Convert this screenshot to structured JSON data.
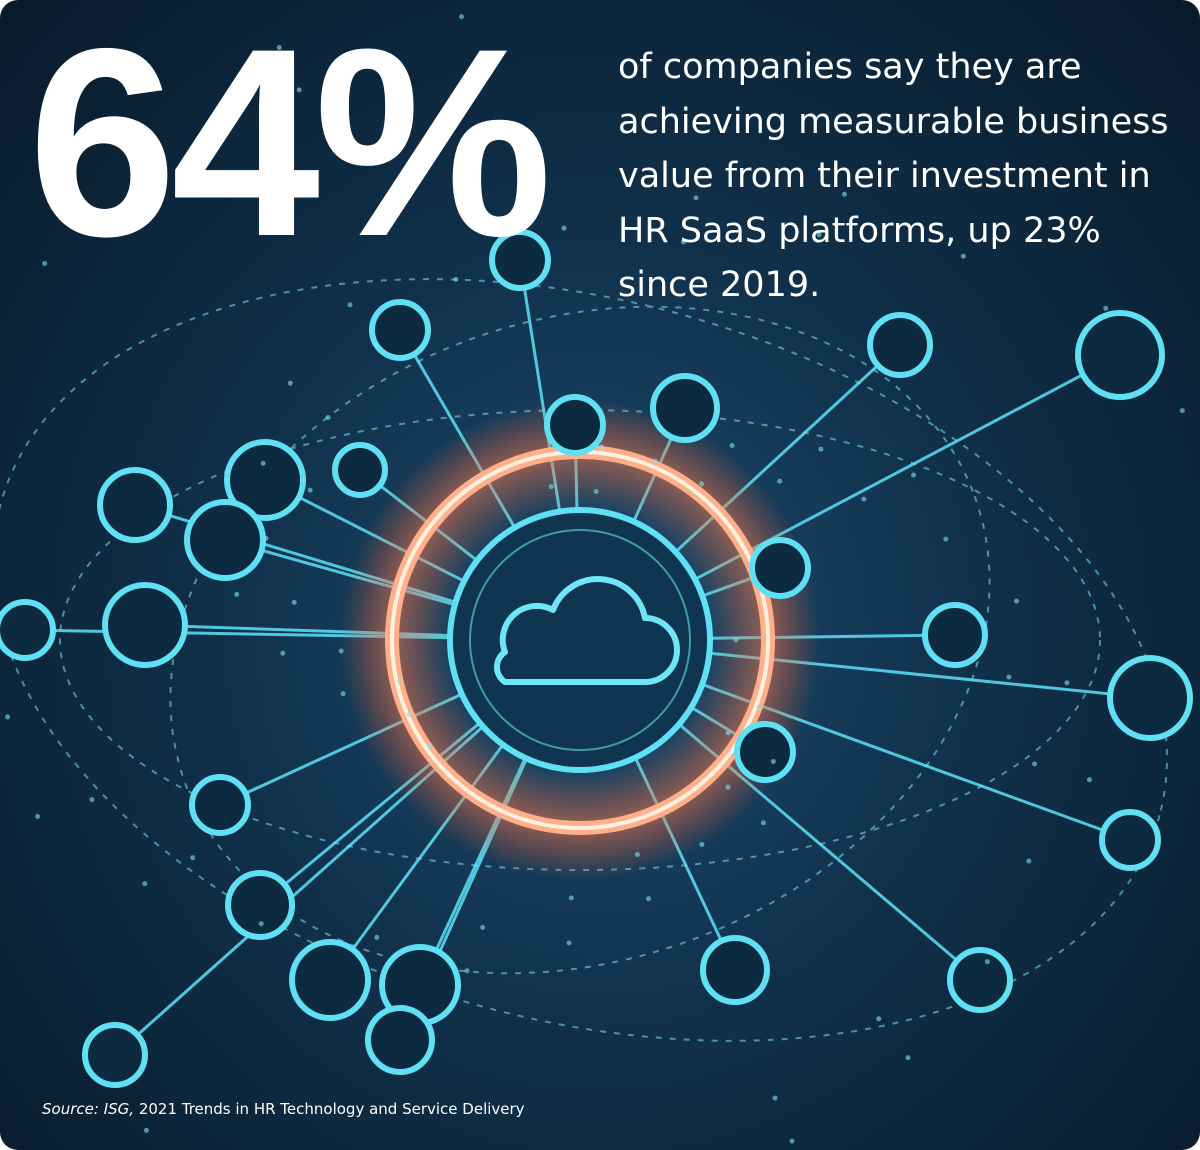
{
  "stat": "64%",
  "description": [
    "of companies say they are",
    "achieving measurable business",
    "value from their investment in",
    "HR SaaS platforms, up 23%",
    "since 2019."
  ],
  "source": {
    "label": "Source:",
    "publisher": "ISG,",
    "title": "2021 Trends in HR Technology and Service Delivery"
  }
}
